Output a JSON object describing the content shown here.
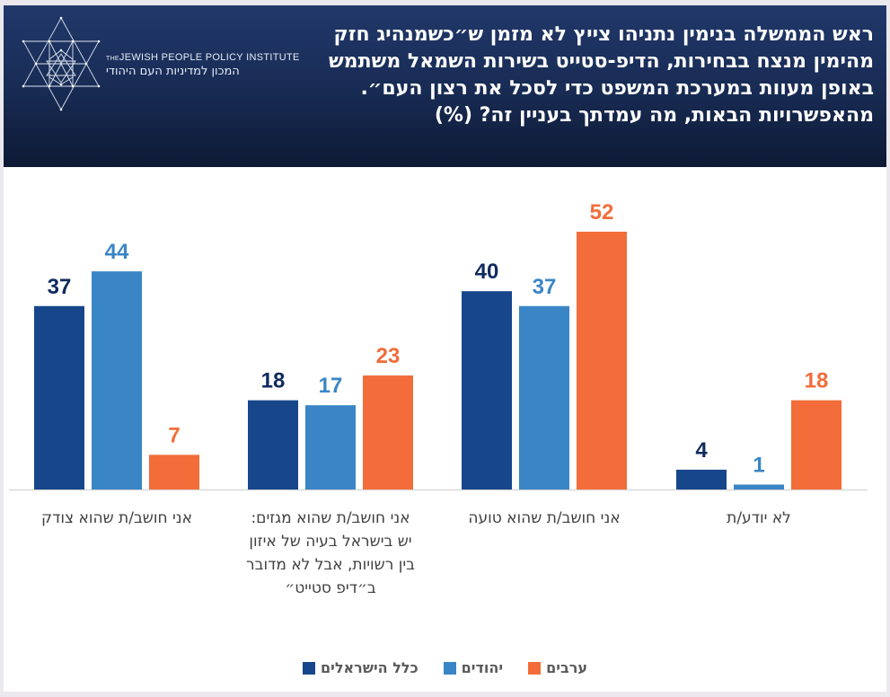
{
  "header": {
    "logo": {
      "icon": "star-of-david-geometric-icon",
      "name_en": "JEWISH PEOPLE POLICY INSTITUTE",
      "name_en_prefix": "THE",
      "name_he": "המכון למדיניות העם היהודי"
    },
    "title": "ראש הממשלה בנימין נתניהו צייץ לא מזמן ש״כשמנהיג חזק מהימין מנצח בבחירות, הדיפ-סטייט בשירות השמאל משתמש באופן מעוות במערכת המשפט כדי לסכל את רצון העם״. מהאפשרויות הבאות, מה עמדתך בעניין זה? (%)"
  },
  "colors": {
    "all_israelis": "#17468b",
    "jews": "#3a85c6",
    "arabs": "#f26d3a",
    "label_all_israelis": "#0f2a5e",
    "axis": "#d9d9d9"
  },
  "chart_data": {
    "type": "bar",
    "title": "ראש הממשלה בנימין נתניהו צייץ לא מזמן ש״כשמנהיג חזק מהימין מנצח בבחירות, הדיפ-סטייט בשירות השמאל משתמש באופן מעוות במערכת המשפט כדי לסכל את רצון העם״. מהאפשרויות הבאות, מה עמדתך בעניין זה? (%)",
    "categories": [
      "אני חושב/ת שהוא צודק",
      "אני חושב/ת שהוא מגזים:\nיש בישראל בעיה של איזון\nבין רשויות, אבל לא מדובר\nב״דיפ סטייט״",
      "אני חושב/ת שהוא טועה",
      "לא יודע/ת"
    ],
    "series": [
      {
        "name": "כלל הישראלים",
        "color": "#17468b",
        "label_color": "#0f2a5e",
        "values": [
          37,
          18,
          40,
          4
        ]
      },
      {
        "name": "יהודים",
        "color": "#3a85c6",
        "label_color": "#3a85c6",
        "values": [
          44,
          17,
          37,
          1
        ]
      },
      {
        "name": "ערבים",
        "color": "#f26d3a",
        "label_color": "#f26d3a",
        "values": [
          7,
          23,
          52,
          18
        ]
      }
    ],
    "xlabel": "",
    "ylabel": "",
    "ylim": [
      0,
      52
    ],
    "grid": false,
    "data_labels": true,
    "legend_position": "bottom-center"
  }
}
